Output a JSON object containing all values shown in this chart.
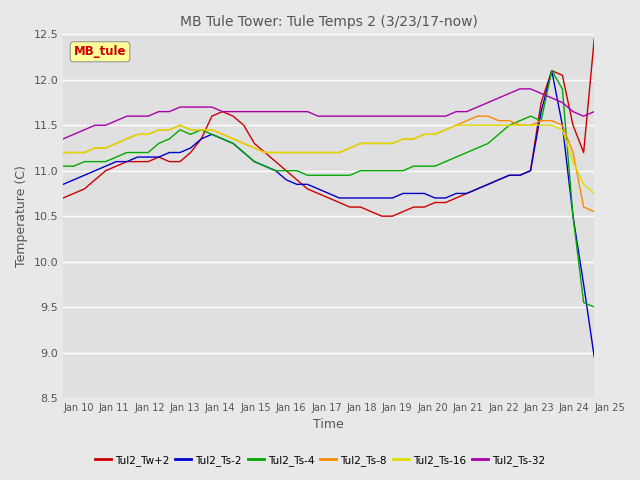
{
  "title": "MB Tule Tower: Tule Temps 2 (3/23/17-now)",
  "xlabel": "Time",
  "ylabel": "Temperature (C)",
  "ylim": [
    8.5,
    12.5
  ],
  "yticks": [
    8.5,
    9.0,
    9.5,
    10.0,
    10.5,
    11.0,
    11.5,
    12.0,
    12.5
  ],
  "xtick_labels": [
    "Jan 10",
    "Jan 11",
    "Jan 12",
    "Jan 13",
    "Jan 14",
    "Jan 15",
    "Jan 16",
    "Jan 17",
    "Jan 18",
    "Jan 19",
    "Jan 20",
    "Jan 21",
    "Jan 22",
    "Jan 23",
    "Jan 24",
    "Jan 25"
  ],
  "series_names": [
    "Tul2_Tw+2",
    "Tul2_Ts-2",
    "Tul2_Ts-4",
    "Tul2_Ts-8",
    "Tul2_Ts-16",
    "Tul2_Ts-32"
  ],
  "series_colors": [
    "#cc0000",
    "#0000cc",
    "#00aa00",
    "#ff8800",
    "#dddd00",
    "#aa00aa"
  ],
  "background_color": "#e8e8e8",
  "plot_bg_color": "#e0e0e0",
  "grid_color": "#ffffff",
  "annotation_text": "MB_tule",
  "annotation_color": "#cc0000",
  "annotation_bg": "#ffff99",
  "title_color": "#555555",
  "x_values": [
    0,
    0.3,
    0.6,
    0.9,
    1.2,
    1.5,
    1.8,
    2.1,
    2.4,
    2.7,
    3.0,
    3.3,
    3.6,
    3.9,
    4.2,
    4.5,
    4.8,
    5.1,
    5.4,
    5.7,
    6.0,
    6.3,
    6.6,
    6.9,
    7.2,
    7.5,
    7.8,
    8.1,
    8.4,
    8.7,
    9.0,
    9.3,
    9.6,
    9.9,
    10.2,
    10.5,
    10.8,
    11.1,
    11.4,
    11.7,
    12.0,
    12.3,
    12.6,
    12.9,
    13.2,
    13.5,
    13.8,
    14.1,
    14.4,
    14.7,
    15.0
  ],
  "Tul2_Tw2": [
    10.7,
    10.75,
    10.8,
    10.9,
    11.0,
    11.05,
    11.1,
    11.1,
    11.1,
    11.15,
    11.1,
    11.1,
    11.2,
    11.35,
    11.6,
    11.65,
    11.6,
    11.5,
    11.3,
    11.2,
    11.1,
    11.0,
    10.9,
    10.8,
    10.75,
    10.7,
    10.65,
    10.6,
    10.6,
    10.55,
    10.5,
    10.5,
    10.55,
    10.6,
    10.6,
    10.65,
    10.65,
    10.7,
    10.75,
    10.8,
    10.85,
    10.9,
    10.95,
    10.95,
    11.0,
    11.75,
    12.1,
    12.05,
    11.5,
    11.2,
    12.45
  ],
  "Tul2_Ts2": [
    10.85,
    10.9,
    10.95,
    11.0,
    11.05,
    11.1,
    11.1,
    11.15,
    11.15,
    11.15,
    11.2,
    11.2,
    11.25,
    11.35,
    11.4,
    11.35,
    11.3,
    11.2,
    11.1,
    11.05,
    11.0,
    10.9,
    10.85,
    10.85,
    10.8,
    10.75,
    10.7,
    10.7,
    10.7,
    10.7,
    10.7,
    10.7,
    10.75,
    10.75,
    10.75,
    10.7,
    10.7,
    10.75,
    10.75,
    10.8,
    10.85,
    10.9,
    10.95,
    10.95,
    11.0,
    11.65,
    12.1,
    11.5,
    10.5,
    9.75,
    8.95
  ],
  "Tul2_Ts4": [
    11.05,
    11.05,
    11.1,
    11.1,
    11.1,
    11.15,
    11.2,
    11.2,
    11.2,
    11.3,
    11.35,
    11.45,
    11.4,
    11.45,
    11.4,
    11.35,
    11.3,
    11.2,
    11.1,
    11.05,
    11.0,
    11.0,
    11.0,
    10.95,
    10.95,
    10.95,
    10.95,
    10.95,
    11.0,
    11.0,
    11.0,
    11.0,
    11.0,
    11.05,
    11.05,
    11.05,
    11.1,
    11.15,
    11.2,
    11.25,
    11.3,
    11.4,
    11.5,
    11.55,
    11.6,
    11.55,
    12.1,
    11.9,
    10.5,
    9.55,
    9.5
  ],
  "Tul2_Ts8": [
    11.2,
    11.2,
    11.2,
    11.25,
    11.25,
    11.3,
    11.35,
    11.4,
    11.4,
    11.45,
    11.45,
    11.5,
    11.45,
    11.45,
    11.45,
    11.4,
    11.35,
    11.3,
    11.25,
    11.2,
    11.2,
    11.2,
    11.2,
    11.2,
    11.2,
    11.2,
    11.2,
    11.25,
    11.3,
    11.3,
    11.3,
    11.3,
    11.35,
    11.35,
    11.4,
    11.4,
    11.45,
    11.5,
    11.55,
    11.6,
    11.6,
    11.55,
    11.55,
    11.5,
    11.5,
    11.55,
    11.55,
    11.5,
    11.2,
    10.6,
    10.55
  ],
  "Tul2_Ts16": [
    11.2,
    11.2,
    11.2,
    11.25,
    11.25,
    11.3,
    11.35,
    11.4,
    11.4,
    11.45,
    11.45,
    11.5,
    11.45,
    11.45,
    11.45,
    11.4,
    11.35,
    11.3,
    11.25,
    11.2,
    11.2,
    11.2,
    11.2,
    11.2,
    11.2,
    11.2,
    11.2,
    11.25,
    11.3,
    11.3,
    11.3,
    11.3,
    11.35,
    11.35,
    11.4,
    11.4,
    11.45,
    11.5,
    11.5,
    11.5,
    11.5,
    11.5,
    11.5,
    11.5,
    11.5,
    11.5,
    11.5,
    11.45,
    11.1,
    10.85,
    10.75
  ],
  "Tul2_Ts32": [
    11.35,
    11.4,
    11.45,
    11.5,
    11.5,
    11.55,
    11.6,
    11.6,
    11.6,
    11.65,
    11.65,
    11.7,
    11.7,
    11.7,
    11.7,
    11.65,
    11.65,
    11.65,
    11.65,
    11.65,
    11.65,
    11.65,
    11.65,
    11.65,
    11.6,
    11.6,
    11.6,
    11.6,
    11.6,
    11.6,
    11.6,
    11.6,
    11.6,
    11.6,
    11.6,
    11.6,
    11.6,
    11.65,
    11.65,
    11.7,
    11.75,
    11.8,
    11.85,
    11.9,
    11.9,
    11.85,
    11.8,
    11.75,
    11.65,
    11.6,
    11.65
  ]
}
